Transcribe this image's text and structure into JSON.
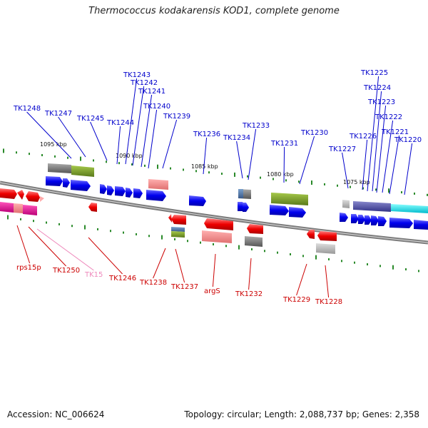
{
  "title": "Thermococcus kodakarensis KOD1, complete genome",
  "footer": {
    "accession": "Accession: NC_006624",
    "stats": "Topology: circular; Length: 2,088,737 bp; Genes: 2,358"
  },
  "scale_labels": [
    "1095 kbp",
    "1090 kbp",
    "1085 kbp",
    "1080 kbp",
    "1075 kbp"
  ],
  "genes_top": [
    "TK1248",
    "TK1247",
    "TK1245",
    "TK1244",
    "TK1243",
    "TK1242",
    "TK1241",
    "TK1240",
    "TK1239",
    "TK1236",
    "TK1234",
    "TK1233",
    "TK1231",
    "TK1230",
    "TK1227",
    "TK1226",
    "TK1225",
    "TK1224",
    "TK1223",
    "TK1222",
    "TK1221",
    "TK1220"
  ],
  "genes_bottom": [
    "rps15p",
    "TK1250",
    "TK15",
    "TK1246",
    "TK1238",
    "TK1237",
    "argS",
    "TK1232",
    "TK1229",
    "TK1228"
  ],
  "colors": {
    "top_label": "#0000cc",
    "bottom_label": "#cc0000",
    "faded_label": "#ee88bb",
    "forward_strand": "#0000ee",
    "reverse_strand": "#ee0000",
    "tick": "#2a8a2a",
    "backbone": "#777777"
  }
}
